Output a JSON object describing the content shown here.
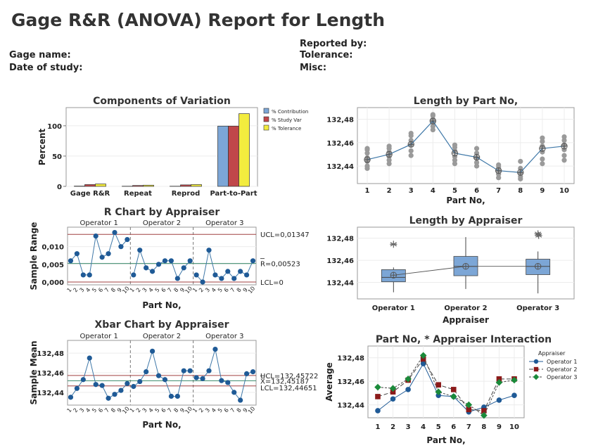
{
  "report": {
    "title": "Gage R&R (ANOVA) Report for Length",
    "gage_name_label": "Gage name:",
    "date_label": "Date of study:",
    "reported_by_label": "Reported by:",
    "tolerance_label": "Tolerance:",
    "misc_label": "Misc:"
  },
  "colors": {
    "contribution": "#7ca6d6",
    "study_var": "#c0474a",
    "tolerance": "#f3ec3e",
    "series_line": "#3f78a8",
    "marker": "#1f5a96",
    "ucl_line": "#a04040",
    "center_line": "#3a8a6a",
    "gray_point": "#9a9a9a",
    "box_fill": "#7ca6d6",
    "op1": "#1f5a96",
    "op2": "#8b1a1a",
    "op3": "#1a8a3a"
  },
  "chart_data": [
    {
      "id": "components",
      "type": "bar",
      "title": "Components of Variation",
      "ylabel": "Percent",
      "xlabel": "",
      "categories": [
        "Gage R&R",
        "Repeat",
        "Reprod",
        "Part-to-Part"
      ],
      "yticks": [
        0,
        50,
        100
      ],
      "ylim": [
        0,
        130
      ],
      "series": [
        {
          "name": "% Contribution",
          "values": [
            0.5,
            0.3,
            0.3,
            99.5
          ]
        },
        {
          "name": "% Study Var",
          "values": [
            3,
            1.5,
            2.5,
            99.5
          ]
        },
        {
          "name": "% Tolerance",
          "values": [
            4,
            2,
            3,
            120
          ]
        }
      ],
      "legend": "right"
    },
    {
      "id": "length_by_part",
      "type": "scatter",
      "title": "Length by Part No,",
      "xlabel": "Part No,",
      "categories": [
        "1",
        "2",
        "3",
        "4",
        "5",
        "6",
        "7",
        "8",
        "9",
        "10"
      ],
      "yticks": [
        "132,44",
        "132,46",
        "132,48"
      ],
      "ytick_values": [
        132.44,
        132.46,
        132.48
      ],
      "ylim": [
        132.425,
        132.49
      ],
      "means": [
        132.4455,
        132.45,
        132.4585,
        132.4785,
        132.451,
        132.4475,
        132.436,
        132.4345,
        132.455,
        132.457
      ],
      "points": [
        [
          132.438,
          132.44,
          132.444,
          132.447,
          132.451,
          132.454,
          132.455
        ],
        [
          132.442,
          132.445,
          132.448,
          132.452,
          132.455,
          132.457
        ],
        [
          132.449,
          132.453,
          132.458,
          132.462,
          132.466,
          132.468
        ],
        [
          132.471,
          132.474,
          132.477,
          132.48,
          132.483,
          132.484
        ],
        [
          132.442,
          132.445,
          132.448,
          132.453,
          132.456,
          132.458
        ],
        [
          132.44,
          132.443,
          132.447,
          132.451,
          132.455
        ],
        [
          132.43,
          132.433,
          132.436,
          132.439,
          132.441
        ],
        [
          132.429,
          132.431,
          132.434,
          132.438,
          132.444
        ],
        [
          132.442,
          132.446,
          132.452,
          132.457,
          132.461,
          132.464
        ],
        [
          132.445,
          132.449,
          132.454,
          132.458,
          132.462,
          132.465
        ]
      ]
    },
    {
      "id": "r_chart",
      "type": "line",
      "title": "R Chart by Appraiser",
      "ylabel": "Sample Range",
      "xlabel": "Part No,",
      "groups": [
        "Operator 1",
        "Operator 2",
        "Operator 3"
      ],
      "tick_labels": [
        "1",
        "2",
        "3",
        "4",
        "5",
        "6",
        "7",
        "8",
        "9",
        "10"
      ],
      "yticks": [
        "0,000",
        "0,005",
        "0,010"
      ],
      "ytick_values": [
        0,
        0.005,
        0.01
      ],
      "ylim": [
        -0.0008,
        0.0155
      ],
      "values": [
        [
          0.006,
          0.008,
          0.002,
          0.002,
          0.013,
          0.007,
          0.008,
          0.014,
          0.01,
          0.012
        ],
        [
          0.002,
          0.009,
          0.004,
          0.003,
          0.005,
          0.006,
          0.006,
          0.001,
          0.004,
          0.006
        ],
        [
          0.002,
          0.0,
          0.009,
          0.002,
          0.001,
          0.003,
          0.001,
          0.003,
          0.002,
          0.006
        ]
      ],
      "ucl": 0.01347,
      "center": 0.00523,
      "lcl": 0,
      "ucl_label": "UCL=0,01347",
      "center_label": "R=0,00523",
      "lcl_label": "LCL=0"
    },
    {
      "id": "length_by_appraiser",
      "type": "box",
      "title": "Length by Appraiser",
      "xlabel": "Appraiser",
      "categories": [
        "Operator 1",
        "Operator 2",
        "Operator 3"
      ],
      "yticks": [
        "132,44",
        "132,46",
        "132,48"
      ],
      "ytick_values": [
        132.44,
        132.46,
        132.48
      ],
      "ylim": [
        132.425,
        132.49
      ],
      "boxes": [
        {
          "min": 132.431,
          "q1": 132.4405,
          "median": 132.4445,
          "q3": 132.4515,
          "max": 132.4535,
          "mean": 132.4465,
          "outliers": [
            132.4745
          ]
        },
        {
          "min": 132.434,
          "q1": 132.446,
          "median": 132.4545,
          "q3": 132.4635,
          "max": 132.481,
          "mean": 132.4545,
          "outliers": []
        },
        {
          "min": 132.43,
          "q1": 132.447,
          "median": 132.4545,
          "q3": 132.461,
          "max": 132.468,
          "mean": 132.4545,
          "outliers": [
            132.484,
            132.4825
          ]
        }
      ]
    },
    {
      "id": "xbar_chart",
      "type": "line",
      "title": "Xbar Chart by Appraiser",
      "ylabel": "Sample Mean",
      "xlabel": "Part No,",
      "groups": [
        "Operator 1",
        "Operator 2",
        "Operator 3"
      ],
      "tick_labels": [
        "1",
        "2",
        "3",
        "4",
        "5",
        "6",
        "7",
        "8",
        "9",
        "10"
      ],
      "yticks": [
        "132,44",
        "132,46",
        "132,48"
      ],
      "ytick_values": [
        132.44,
        132.46,
        132.48
      ],
      "ylim": [
        132.427,
        132.493
      ],
      "values": [
        [
          132.435,
          132.444,
          132.453,
          132.475,
          132.448,
          132.447,
          132.434,
          132.438,
          132.442,
          132.449
        ],
        [
          132.446,
          132.451,
          132.461,
          132.482,
          132.457,
          132.453,
          132.436,
          132.436,
          132.462,
          132.462
        ],
        [
          132.455,
          132.454,
          132.462,
          132.484,
          132.452,
          132.45,
          132.44,
          132.432,
          132.459,
          132.461
        ]
      ],
      "ucl": 132.45722,
      "center": 132.45187,
      "lcl": 132.44651,
      "ucl_label": "UCL=132,45722",
      "center_label": "X=132,45187",
      "lcl_label": "LCL=132,44651"
    },
    {
      "id": "interaction",
      "type": "line",
      "title": "Part No, * Appraiser Interaction",
      "ylabel": "Average",
      "xlabel": "Part No,",
      "legend_title": "Appraiser",
      "categories": [
        "1",
        "2",
        "3",
        "4",
        "5",
        "6",
        "7",
        "8",
        "9",
        "10"
      ],
      "yticks": [
        "132,44",
        "132,46",
        "132,48"
      ],
      "ytick_values": [
        132.44,
        132.46,
        132.48
      ],
      "ylim": [
        132.429,
        132.49
      ],
      "series": [
        {
          "name": "Operator 1",
          "values": [
            132.435,
            132.445,
            132.453,
            132.475,
            132.448,
            132.447,
            132.434,
            132.438,
            132.444,
            132.448
          ]
        },
        {
          "name": "Operator 2",
          "values": [
            132.447,
            132.451,
            132.461,
            132.479,
            132.457,
            132.453,
            132.436,
            132.435,
            132.462,
            132.462
          ]
        },
        {
          "name": "Operator 3",
          "values": [
            132.455,
            132.454,
            132.462,
            132.482,
            132.451,
            132.447,
            132.44,
            132.431,
            132.459,
            132.461
          ]
        }
      ],
      "legend": "right"
    }
  ]
}
